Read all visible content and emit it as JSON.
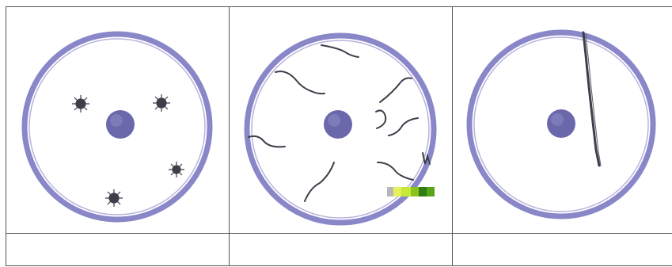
{
  "colors": {
    "membrane": "#8a87c9",
    "membrane_inner": "#b8b2dc",
    "membrane_edge": "#6b68b0",
    "nucleus": "#6a68ab",
    "nucleus_highlight": "#8f8dc6",
    "chromatin": "#3e3e4a",
    "grid_border": "#555555"
  },
  "cells": [
    {
      "name": "cell-a",
      "content": "dispersed-granules",
      "granule_count": 4
    },
    {
      "name": "cell-b",
      "content": "thread-strands",
      "strand_count": 9
    },
    {
      "name": "cell-c",
      "content": "single-long-strand",
      "strand_count": 1
    }
  ],
  "bottom_row": {
    "cells": [
      "",
      "",
      ""
    ]
  }
}
